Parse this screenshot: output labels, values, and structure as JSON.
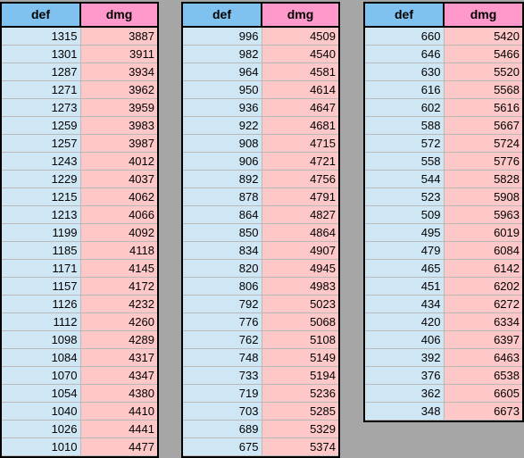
{
  "tables": [
    {
      "headers": {
        "def": "def",
        "dmg": "dmg"
      },
      "rows": [
        [
          "1315",
          "3887"
        ],
        [
          "1301",
          "3911"
        ],
        [
          "1287",
          "3934"
        ],
        [
          "1271",
          "3962"
        ],
        [
          "1273",
          "3959"
        ],
        [
          "1259",
          "3983"
        ],
        [
          "1257",
          "3987"
        ],
        [
          "1243",
          "4012"
        ],
        [
          "1229",
          "4037"
        ],
        [
          "1215",
          "4062"
        ],
        [
          "1213",
          "4066"
        ],
        [
          "1199",
          "4092"
        ],
        [
          "1185",
          "4118"
        ],
        [
          "1171",
          "4145"
        ],
        [
          "1157",
          "4172"
        ],
        [
          "1126",
          "4232"
        ],
        [
          "1112",
          "4260"
        ],
        [
          "1098",
          "4289"
        ],
        [
          "1084",
          "4317"
        ],
        [
          "1070",
          "4347"
        ],
        [
          "1054",
          "4380"
        ],
        [
          "1040",
          "4410"
        ],
        [
          "1026",
          "4441"
        ],
        [
          "1010",
          "4477"
        ]
      ]
    },
    {
      "headers": {
        "def": "def",
        "dmg": "dmg"
      },
      "rows": [
        [
          "996",
          "4509"
        ],
        [
          "982",
          "4540"
        ],
        [
          "964",
          "4581"
        ],
        [
          "950",
          "4614"
        ],
        [
          "936",
          "4647"
        ],
        [
          "922",
          "4681"
        ],
        [
          "908",
          "4715"
        ],
        [
          "906",
          "4721"
        ],
        [
          "892",
          "4756"
        ],
        [
          "878",
          "4791"
        ],
        [
          "864",
          "4827"
        ],
        [
          "850",
          "4864"
        ],
        [
          "834",
          "4907"
        ],
        [
          "820",
          "4945"
        ],
        [
          "806",
          "4983"
        ],
        [
          "792",
          "5023"
        ],
        [
          "776",
          "5068"
        ],
        [
          "762",
          "5108"
        ],
        [
          "748",
          "5149"
        ],
        [
          "733",
          "5194"
        ],
        [
          "719",
          "5236"
        ],
        [
          "703",
          "5285"
        ],
        [
          "689",
          "5329"
        ],
        [
          "675",
          "5374"
        ]
      ]
    },
    {
      "headers": {
        "def": "def",
        "dmg": "dmg"
      },
      "rows": [
        [
          "660",
          "5420"
        ],
        [
          "646",
          "5466"
        ],
        [
          "630",
          "5520"
        ],
        [
          "616",
          "5568"
        ],
        [
          "602",
          "5616"
        ],
        [
          "588",
          "5667"
        ],
        [
          "572",
          "5724"
        ],
        [
          "558",
          "5776"
        ],
        [
          "544",
          "5828"
        ],
        [
          "523",
          "5908"
        ],
        [
          "509",
          "5963"
        ],
        [
          "495",
          "6019"
        ],
        [
          "479",
          "6084"
        ],
        [
          "465",
          "6142"
        ],
        [
          "451",
          "6202"
        ],
        [
          "434",
          "6272"
        ],
        [
          "420",
          "6334"
        ],
        [
          "406",
          "6397"
        ],
        [
          "392",
          "6463"
        ],
        [
          "376",
          "6538"
        ],
        [
          "362",
          "6605"
        ],
        [
          "348",
          "6673"
        ]
      ]
    }
  ]
}
